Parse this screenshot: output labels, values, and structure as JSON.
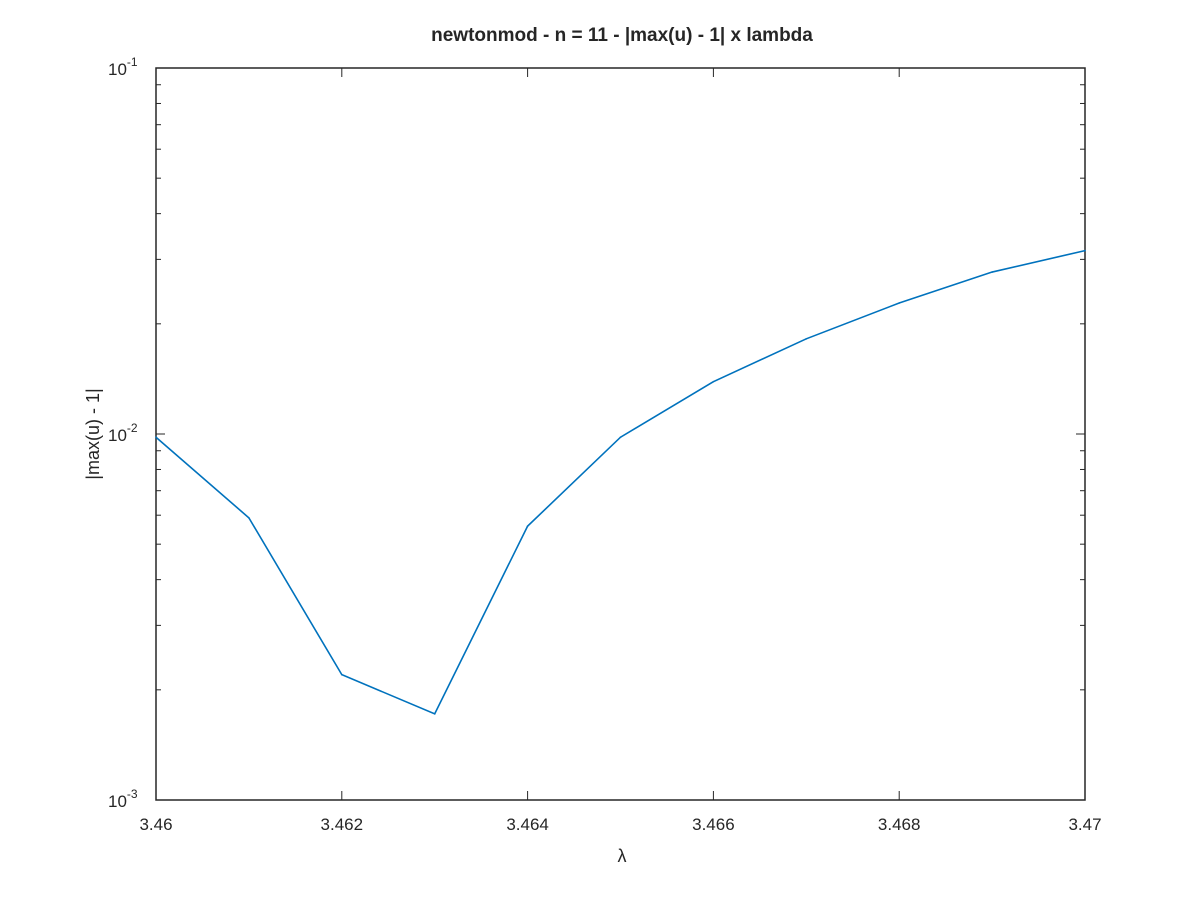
{
  "chart_data": {
    "type": "line",
    "title": "newtonmod - n = 11 - |max(u) - 1| x lambda",
    "xlabel": "λ",
    "ylabel": "|max(u) - 1|",
    "xlim": [
      3.46,
      3.47
    ],
    "ylim": [
      0.001,
      0.1
    ],
    "yscale": "log",
    "grid": false,
    "xticks": [
      3.46,
      3.462,
      3.464,
      3.466,
      3.468,
      3.47
    ],
    "xtick_labels": [
      "3.46",
      "3.462",
      "3.464",
      "3.466",
      "3.468",
      "3.47"
    ],
    "yticks": [
      0.001,
      0.01,
      0.1
    ],
    "ytick_labels": [
      {
        "base": "10",
        "exp": "-3"
      },
      {
        "base": "10",
        "exp": "-2"
      },
      {
        "base": "10",
        "exp": "-1"
      }
    ],
    "series": [
      {
        "color": "#0072BD",
        "x": [
          3.46,
          3.461,
          3.462,
          3.463,
          3.464,
          3.465,
          3.466,
          3.467,
          3.468,
          3.469,
          3.47
        ],
        "y": [
          0.0098,
          0.0059,
          0.0022,
          0.00172,
          0.0056,
          0.0098,
          0.0139,
          0.0182,
          0.0228,
          0.0277,
          0.0317
        ]
      }
    ]
  }
}
